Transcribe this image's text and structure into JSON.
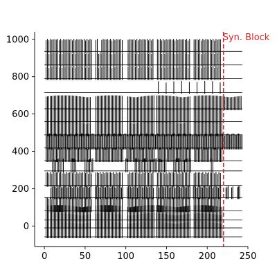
{
  "chart_data": {
    "type": "line",
    "title": "",
    "xlabel": "",
    "ylabel": "",
    "xlim": [
      -12,
      250
    ],
    "ylim": [
      -110,
      1040
    ],
    "x_ticks": [
      0,
      50,
      100,
      150,
      200,
      250
    ],
    "y_ticks": [
      0,
      200,
      400,
      600,
      800,
      1000
    ],
    "grid": false,
    "spines": "left-bottom",
    "trace_color": "#000000",
    "traces": [
      {
        "baseline": -58,
        "spike_height": 82,
        "x_start": 0,
        "x_end": 243,
        "active_segments": [
          [
            2,
            218
          ]
        ],
        "spike_interval": 1.7,
        "gaps": [
          [
            58,
            62
          ],
          [
            97,
            101
          ],
          [
            135,
            138
          ],
          [
            180,
            183
          ]
        ]
      },
      {
        "baseline": -10,
        "spike_height": 78,
        "x_start": 0,
        "x_end": 243,
        "active_segments": [
          [
            2,
            218
          ]
        ],
        "spike_interval": 1.7,
        "gaps": [
          [
            58,
            62
          ],
          [
            97,
            101
          ],
          [
            135,
            138
          ],
          [
            180,
            183
          ]
        ]
      },
      {
        "baseline": 32,
        "spike_height": 80,
        "x_start": 0,
        "x_end": 243,
        "active_segments": [
          [
            2,
            218
          ]
        ],
        "spike_interval": 1.7,
        "gaps": [
          [
            58,
            62
          ],
          [
            97,
            101
          ],
          [
            135,
            138
          ],
          [
            180,
            183
          ]
        ]
      },
      {
        "baseline": 82,
        "spike_height": 72,
        "x_start": 0,
        "x_end": 243,
        "active_segments": [
          [
            2,
            218
          ]
        ],
        "spike_interval": 1.8,
        "gaps": [
          [
            58,
            62
          ],
          [
            97,
            101
          ],
          [
            135,
            138
          ],
          [
            180,
            183
          ]
        ]
      },
      {
        "baseline": 152,
        "spike_height": 62,
        "x_start": 0,
        "x_end": 243,
        "active_segments": [
          [
            8,
            218
          ],
          [
            223,
            240
          ]
        ],
        "spike_interval": 1.4,
        "gaps": [
          [
            58,
            62
          ],
          [
            97,
            101
          ],
          [
            135,
            138
          ],
          [
            180,
            183
          ],
          [
            226,
            230
          ],
          [
            232,
            236
          ]
        ]
      },
      {
        "baseline": 218,
        "spike_height": 72,
        "x_start": 0,
        "x_end": 243,
        "active_segments": [
          [
            2,
            218
          ]
        ],
        "spike_interval": 1.8,
        "gaps": [
          [
            58,
            62
          ],
          [
            97,
            101
          ],
          [
            135,
            138
          ],
          [
            180,
            183
          ]
        ]
      },
      {
        "baseline": 295,
        "spike_height": 68,
        "x_start": 0,
        "x_end": 243,
        "active_segments": [
          [
            10,
            60
          ],
          [
            100,
            180
          ],
          [
            205,
            207
          ]
        ],
        "spike_interval": 1.9,
        "gaps": [
          [
            25,
            32
          ],
          [
            40,
            48
          ],
          [
            103,
            110
          ],
          [
            150,
            158
          ]
        ]
      },
      {
        "baseline": 350,
        "spike_height": 70,
        "x_start": 0,
        "x_end": 243,
        "active_segments": [
          [
            2,
            218
          ]
        ],
        "spike_interval": 1.6,
        "gaps": [
          [
            58,
            62
          ],
          [
            97,
            101
          ],
          [
            135,
            138
          ],
          [
            180,
            183
          ]
        ]
      },
      {
        "baseline": 418,
        "spike_height": 78,
        "x_start": 0,
        "x_end": 243,
        "active_segments": [
          [
            2,
            243
          ]
        ],
        "spike_interval": 1.4,
        "gaps": []
      },
      {
        "baseline": 488,
        "spike_height": 72,
        "x_start": 0,
        "x_end": 243,
        "active_segments": [
          [
            2,
            218
          ]
        ],
        "spike_interval": 1.7,
        "gaps": [
          [
            58,
            62
          ],
          [
            97,
            101
          ],
          [
            135,
            138
          ],
          [
            180,
            183
          ]
        ]
      },
      {
        "baseline": 560,
        "spike_height": 74,
        "x_start": 0,
        "x_end": 243,
        "active_segments": [
          [
            2,
            218
          ]
        ],
        "spike_interval": 1.7,
        "gaps": [
          [
            58,
            62
          ],
          [
            97,
            101
          ],
          [
            135,
            138
          ],
          [
            180,
            183
          ]
        ]
      },
      {
        "baseline": 628,
        "spike_height": 72,
        "x_start": 0,
        "x_end": 243,
        "active_segments": [
          [
            2,
            243
          ]
        ],
        "spike_interval": 1.7,
        "gaps": [
          [
            58,
            62
          ],
          [
            97,
            101
          ],
          [
            135,
            138
          ],
          [
            180,
            183
          ]
        ]
      },
      {
        "baseline": 715,
        "spike_height": 62,
        "x_start": 0,
        "x_end": 243,
        "active_segments": [
          [
            140,
            218
          ]
        ],
        "spike_interval": 9.5,
        "gaps": []
      },
      {
        "baseline": 790,
        "spike_height": 68,
        "x_start": 0,
        "x_end": 243,
        "active_segments": [
          [
            2,
            218
          ]
        ],
        "spike_interval": 1.8,
        "gaps": [
          [
            58,
            62
          ],
          [
            97,
            101
          ],
          [
            135,
            138
          ],
          [
            180,
            183
          ]
        ]
      },
      {
        "baseline": 863,
        "spike_height": 68,
        "x_start": 0,
        "x_end": 243,
        "active_segments": [
          [
            2,
            218
          ]
        ],
        "spike_interval": 1.8,
        "gaps": [
          [
            58,
            62
          ],
          [
            97,
            101
          ],
          [
            135,
            138
          ],
          [
            180,
            183
          ]
        ]
      },
      {
        "baseline": 935,
        "spike_height": 68,
        "x_start": 0,
        "x_end": 243,
        "active_segments": [
          [
            2,
            218
          ]
        ],
        "spike_interval": 1.8,
        "gaps": [
          [
            58,
            62
          ],
          [
            66,
            70
          ],
          [
            97,
            101
          ],
          [
            135,
            138
          ],
          [
            180,
            183
          ]
        ]
      }
    ],
    "annotations": [
      {
        "type": "vline",
        "x": 220,
        "style": "dashed",
        "color": "#d62728",
        "label": "Syn. Block",
        "label_color": "#d62728"
      }
    ]
  }
}
